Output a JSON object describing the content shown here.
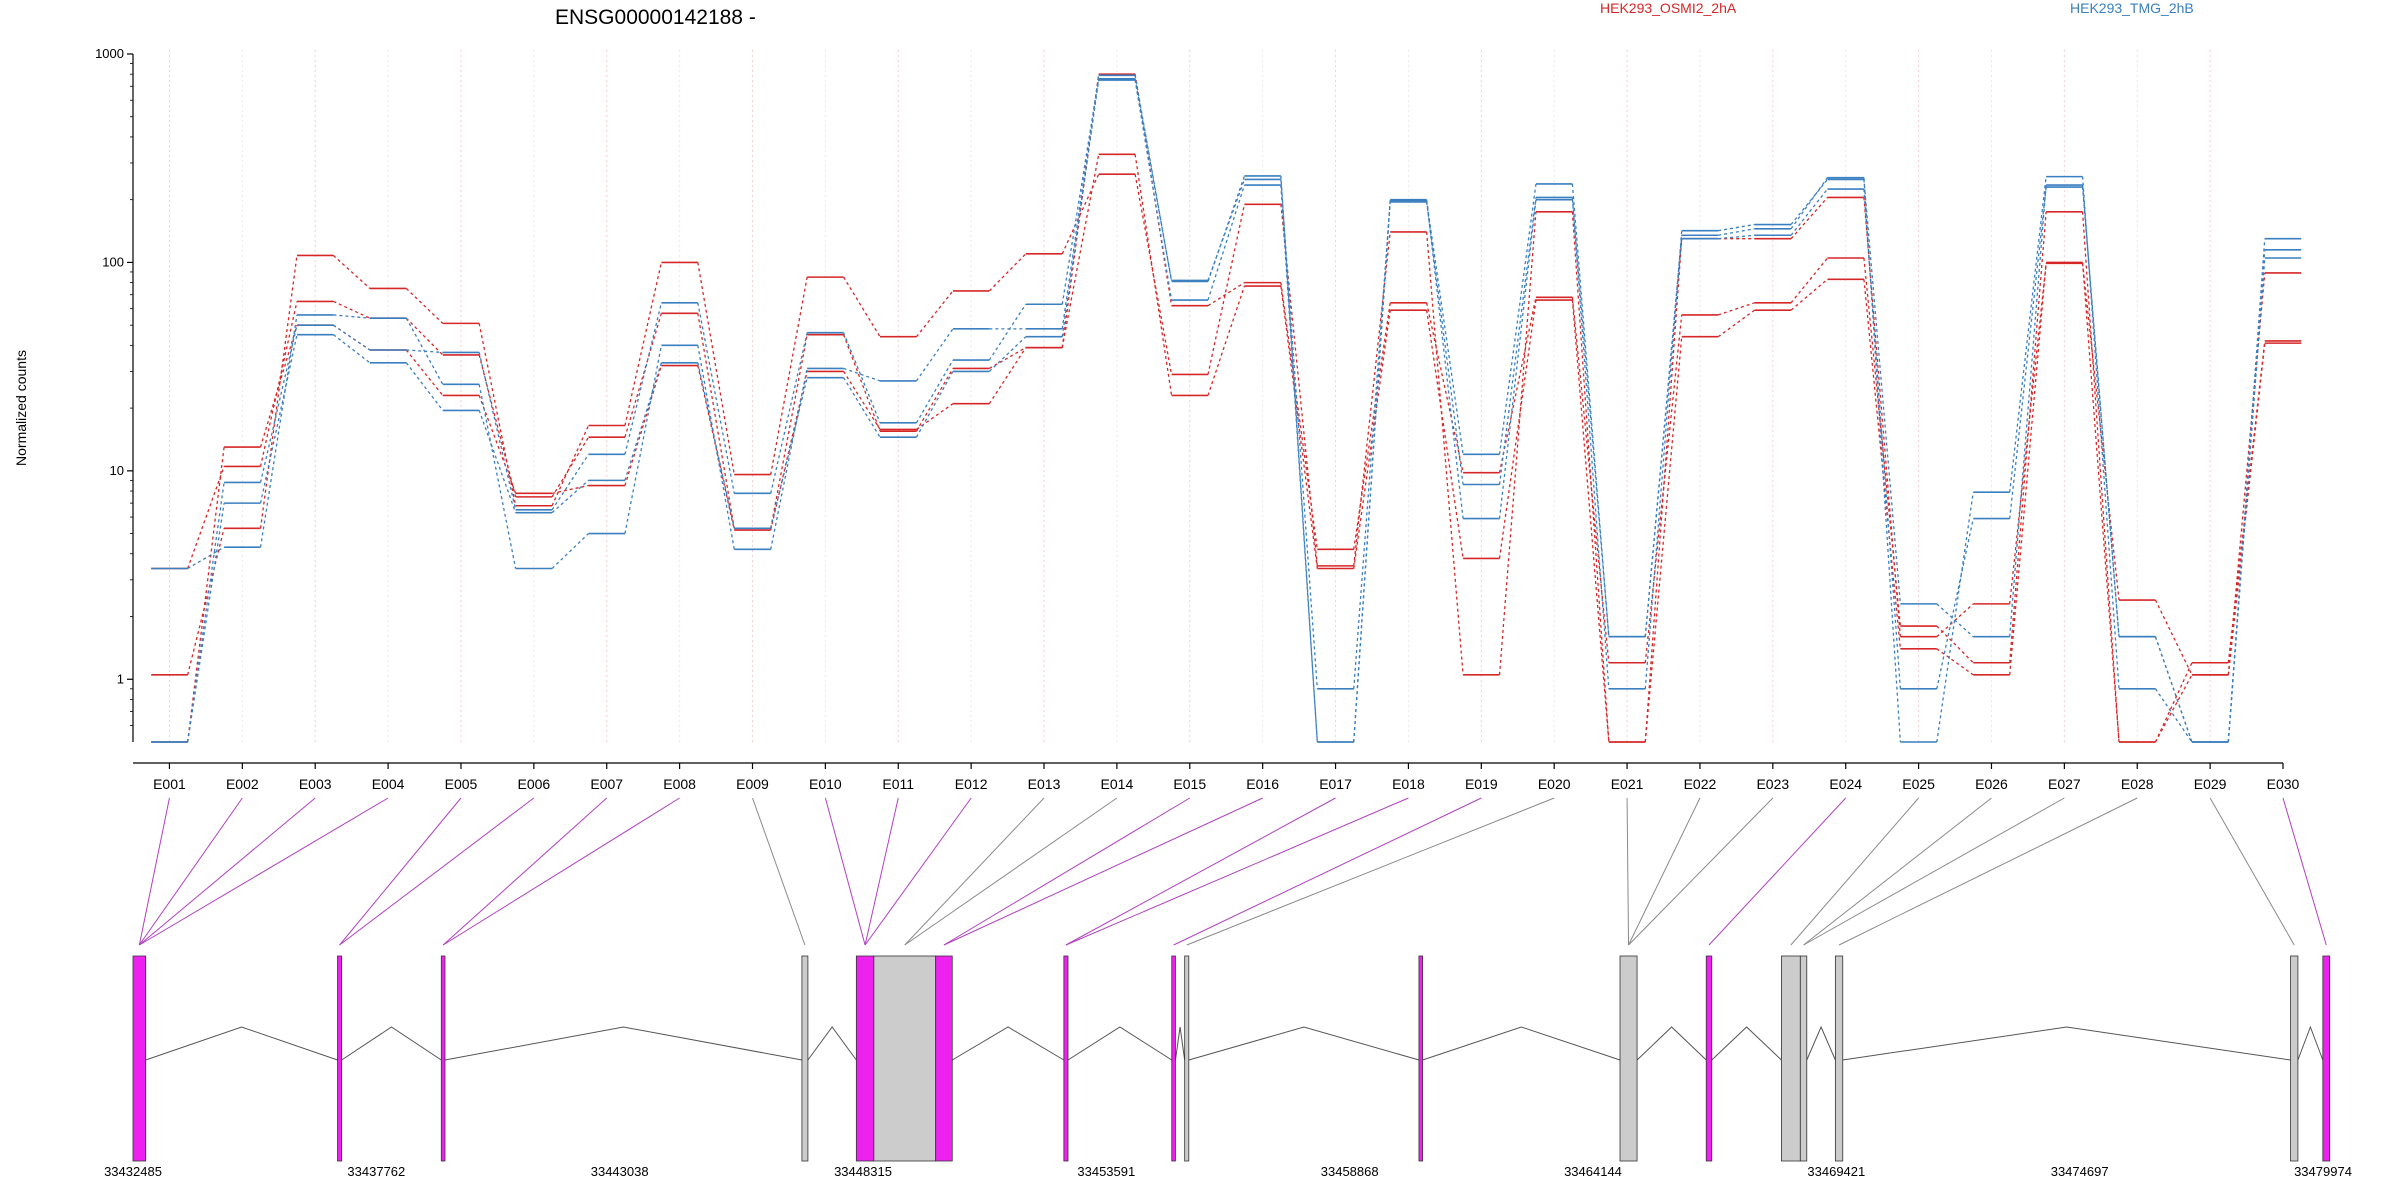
{
  "chart_data": {
    "type": "line",
    "title": "ENSG00000142188 -",
    "ylabel": "Normalized counts",
    "yscale": "log",
    "ylim": [
      0.5,
      1000
    ],
    "yticks": [
      1,
      10,
      100,
      1000
    ],
    "ytick_labels": [
      "1",
      "10",
      "100",
      "1000"
    ],
    "grid": "vertical dotted lines at exon boundaries",
    "legend_position": "top",
    "categories": [
      "E001",
      "E002",
      "E003",
      "E004",
      "E005",
      "E006",
      "E007",
      "E008",
      "E009",
      "E010",
      "E011",
      "E012",
      "E013",
      "E014",
      "E015",
      "E016",
      "E017",
      "E018",
      "E019",
      "E020",
      "E021",
      "E022",
      "E023",
      "E024",
      "E025",
      "E026",
      "E027",
      "E028",
      "E029",
      "E030"
    ],
    "series": [
      {
        "name": "HEK293_OSMI2_2hA",
        "color": "#d62728",
        "values": [
          3.4,
          10.5,
          65,
          54,
          36,
          7.5,
          14.5,
          57,
          5.3,
          45,
          15.5,
          31,
          39,
          800,
          62,
          80,
          4.2,
          64,
          9.8,
          68,
          1.2,
          56,
          64,
          105,
          1.8,
          1.2,
          175,
          0.5,
          1.2,
          42
        ]
      },
      {
        "name": "HEK293_OSMI2_2hA",
        "color": "#d62728",
        "values": [
          1.05,
          5.3,
          108,
          75,
          51,
          6.8,
          16.5,
          100,
          9.6,
          85,
          44,
          73,
          110,
          265,
          29,
          190,
          3.5,
          140,
          1.05,
          175,
          0.5,
          130,
          130,
          205,
          1.6,
          2.3,
          99,
          2.4,
          1.05,
          89
        ]
      },
      {
        "name": "HEK293_OSMI2_2hA",
        "color": "#d62728",
        "values": [
          0.5,
          13,
          50,
          38,
          23,
          7.8,
          8.5,
          32,
          5.2,
          30,
          15.8,
          21,
          39,
          330,
          23,
          77,
          3.4,
          59,
          3.8,
          66,
          0.5,
          44,
          59,
          83,
          1.4,
          1.05,
          100,
          0.5,
          1.05,
          41
        ]
      },
      {
        "name": "HEK293_TMG_2hB",
        "color": "#3a7fc0",
        "values": [
          0.5,
          7,
          45,
          33,
          19.5,
          6.3,
          9,
          33,
          5.3,
          28,
          14.5,
          30,
          44,
          750,
          66,
          235,
          0.5,
          200,
          5.9,
          200,
          1.6,
          130,
          135,
          225,
          0.9,
          5.9,
          230,
          1.6,
          0.5,
          105
        ]
      },
      {
        "name": "HEK293_TMG_2hB",
        "color": "#3a7fc0",
        "values": [
          3.4,
          4.3,
          56,
          54,
          26,
          3.4,
          5,
          40,
          4.2,
          31,
          27,
          48,
          48,
          790,
          81,
          260,
          0.5,
          198,
          12,
          238,
          1.6,
          135,
          145,
          255,
          0.5,
          7.9,
          258,
          0.9,
          0.5,
          115
        ]
      },
      {
        "name": "HEK293_TMG_2hB",
        "color": "#3a7fc0",
        "values": [
          0.5,
          8.8,
          50,
          38,
          37,
          6.5,
          12,
          64,
          7.8,
          46,
          17,
          34,
          63,
          760,
          82,
          250,
          0.9,
          195,
          8.6,
          205,
          0.9,
          142,
          152,
          250,
          2.3,
          1.6,
          235,
          1.6,
          0.5,
          130
        ]
      }
    ],
    "legend": [
      "HEK293_OSMI2_2hA",
      "HEK293_TMG_2hB"
    ],
    "gene_model": {
      "coordinate_labels": [
        "33432485",
        "33437762",
        "33443038",
        "33448315",
        "33453591",
        "33458868",
        "33464144",
        "33469421",
        "33474697",
        "33479974"
      ],
      "features": [
        {
          "start": 33432485,
          "end": 33432760,
          "highlighted": true
        },
        {
          "start": 33436920,
          "end": 33437010,
          "highlighted": true
        },
        {
          "start": 33439170,
          "end": 33439250,
          "highlighted": true
        },
        {
          "start": 33446990,
          "end": 33447120,
          "highlighted": false
        },
        {
          "start": 33448170,
          "end": 33448550,
          "highlighted": true
        },
        {
          "start": 33448550,
          "end": 33449890,
          "highlighted": false
        },
        {
          "start": 33449890,
          "end": 33450250,
          "highlighted": true
        },
        {
          "start": 33452670,
          "end": 33452760,
          "highlighted": true
        },
        {
          "start": 33455010,
          "end": 33455090,
          "highlighted": true
        },
        {
          "start": 33455290,
          "end": 33455380,
          "highlighted": false
        },
        {
          "start": 33460370,
          "end": 33460450,
          "highlighted": true
        },
        {
          "start": 33464730,
          "end": 33465100,
          "highlighted": false
        },
        {
          "start": 33466600,
          "end": 33466720,
          "highlighted": true
        },
        {
          "start": 33468230,
          "end": 33468640,
          "highlighted": false
        },
        {
          "start": 33468640,
          "end": 33468780,
          "highlighted": false
        },
        {
          "start": 33469400,
          "end": 33469560,
          "highlighted": false
        },
        {
          "start": 33479270,
          "end": 33479430,
          "highlighted": false
        },
        {
          "start": 33479970,
          "end": 33480120,
          "highlighted": true
        }
      ],
      "exon_feature_map": [
        0,
        0,
        0,
        0,
        1,
        1,
        2,
        2,
        3,
        4,
        4,
        4,
        5,
        5,
        6,
        6,
        7,
        7,
        8,
        9,
        11,
        11,
        11,
        12,
        13,
        14,
        14,
        15,
        16,
        17
      ]
    }
  }
}
